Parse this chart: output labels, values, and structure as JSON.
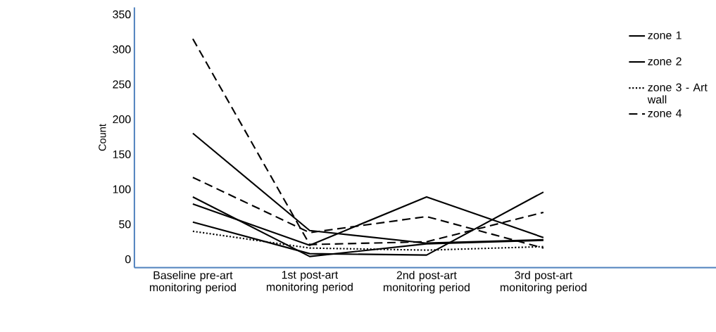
{
  "chart_data": {
    "type": "line",
    "ylabel": "Count",
    "categories": [
      "Baseline pre-art monitoring period",
      "1st post-art monitoring period",
      "2nd post-art monitoring period",
      "3rd post-art monitoring period"
    ],
    "series": [
      {
        "name": "zone 1",
        "color": "#000000",
        "line_style": "solid",
        "values": [
          180,
          41,
          23,
          28
        ]
      },
      {
        "name": "zone 2",
        "color": "#000000",
        "line_style": "solid",
        "values": [
          53,
          8,
          6,
          96
        ]
      },
      {
        "name": "zone 3 - Art wall",
        "color": "#000000",
        "line_style": "dotted",
        "values": [
          40,
          16,
          13,
          18
        ]
      },
      {
        "name": "zone 4",
        "color": "#000000",
        "line_style": "dashed",
        "values": [
          315,
          21,
          25,
          67
        ]
      },
      {
        "color": "#000000",
        "line_style": "dashed",
        "values": [
          117,
          38,
          61,
          16
        ]
      },
      {
        "color": "#000000",
        "line_style": "solid",
        "values": [
          89,
          4,
          22,
          27
        ]
      },
      {
        "color": "#000000",
        "line_style": "solid",
        "values": [
          79,
          20,
          89,
          31
        ]
      }
    ],
    "ylim": [
      -12,
      360
    ],
    "yticks": [
      0,
      50,
      100,
      150,
      200,
      250,
      300,
      350
    ],
    "grid": false,
    "legend": "top right",
    "marker": "none"
  }
}
